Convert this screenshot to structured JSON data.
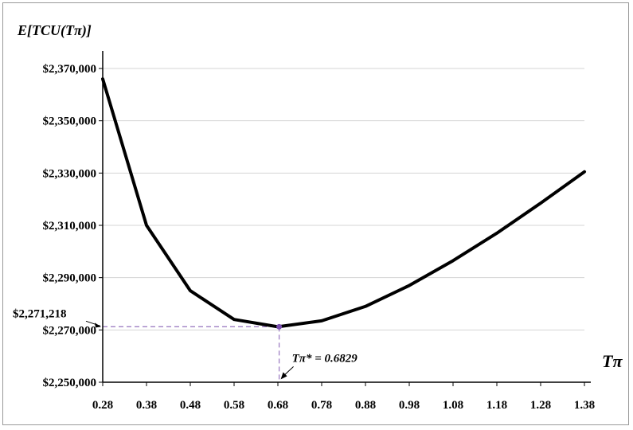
{
  "chart_data": {
    "type": "line",
    "ylabel": "E[TCU(Tπ)]",
    "xlabel": "Tπ",
    "x_ticks": [
      "0.28",
      "0.38",
      "0.48",
      "0.58",
      "0.68",
      "0.78",
      "0.88",
      "0.98",
      "1.08",
      "1.18",
      "1.28",
      "1.38"
    ],
    "y_ticks": [
      "$2,250,000",
      "$2,270,000",
      "$2,290,000",
      "$2,310,000",
      "$2,330,000",
      "$2,350,000",
      "$2,370,000"
    ],
    "xlim": [
      0.28,
      1.38
    ],
    "ylim": [
      2250000,
      2370000
    ],
    "grid": true,
    "series": [
      {
        "x": [
          0.28,
          0.38,
          0.48,
          0.58,
          0.68,
          0.78,
          0.88,
          0.98,
          1.08,
          1.18,
          1.28,
          1.38
        ],
        "y": [
          2366000,
          2310000,
          2285000,
          2274000,
          2271200,
          2273500,
          2279000,
          2287000,
          2296500,
          2307000,
          2318500,
          2330500
        ]
      }
    ],
    "optimum": {
      "x": 0.6829,
      "y": 2271218,
      "y_label": "$2,271,218",
      "x_label": "Tπ* = 0.6829"
    },
    "colors": {
      "line": "#000000",
      "grid": "#d4d4d4",
      "reference": "#9e7fc4",
      "marker": "#7a4fb0"
    }
  }
}
